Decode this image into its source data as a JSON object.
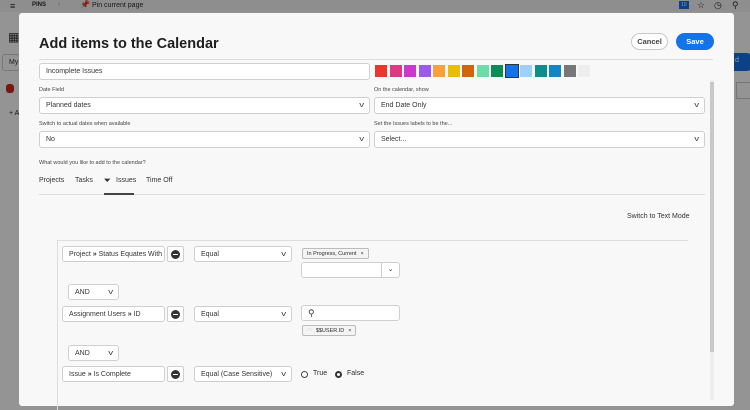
{
  "background": {
    "menu_icon": "hamburger-icon",
    "pins_label": "PINS",
    "pin_label": "Pin current page",
    "badge": "10",
    "left_input": "My",
    "left_add": "+ A",
    "right_button": "d"
  },
  "modal": {
    "title": "Add items to the Calendar",
    "cancel_label": "Cancel",
    "save_label": "Save",
    "name_value": "Incomplete Issues",
    "colors": [
      "#e8382d",
      "#da3b82",
      "#c93ac9",
      "#9b5be8",
      "#f8a03b",
      "#e6c000",
      "#d0650f",
      "#6edba9",
      "#0b8c58",
      "#1473e6",
      "#9fcff7",
      "#0f8c8c",
      "#1385c2",
      "#777777",
      "#eeeeee"
    ],
    "selected_color": "#1473e6",
    "date_field": {
      "label": "Date Field",
      "value": "Planned dates"
    },
    "show": {
      "label": "On the calendar, show",
      "value": "End Date Only"
    },
    "actual": {
      "label": "Switch to actual dates when available",
      "value": "No"
    },
    "labels": {
      "label": "Set the Issues labels to be the...",
      "value": "Select..."
    },
    "question": "What would you like to add to the calendar?",
    "tabs": [
      {
        "label": "Projects"
      },
      {
        "label": "Tasks"
      },
      {
        "label": "Issues",
        "active": true,
        "icon": "filter-icon"
      },
      {
        "label": "Time Off"
      }
    ],
    "text_mode": "Switch to Text Mode",
    "filters": [
      {
        "field": "Project",
        "sep": "»",
        "attr": "Status Equates With",
        "operator": "Equal",
        "tag": "In Progress, Current"
      },
      {
        "conj": "AND"
      },
      {
        "field": "Assignment Users",
        "sep": "»",
        "attr": "ID",
        "operator": "Equal",
        "tag": "$$USER.ID"
      },
      {
        "conj": "AND"
      },
      {
        "field": "Issue",
        "sep": "»",
        "attr": "Is Complete",
        "operator": "Equal (Case Sensitive)",
        "options": [
          "True",
          "False"
        ],
        "selected": "False"
      }
    ]
  }
}
